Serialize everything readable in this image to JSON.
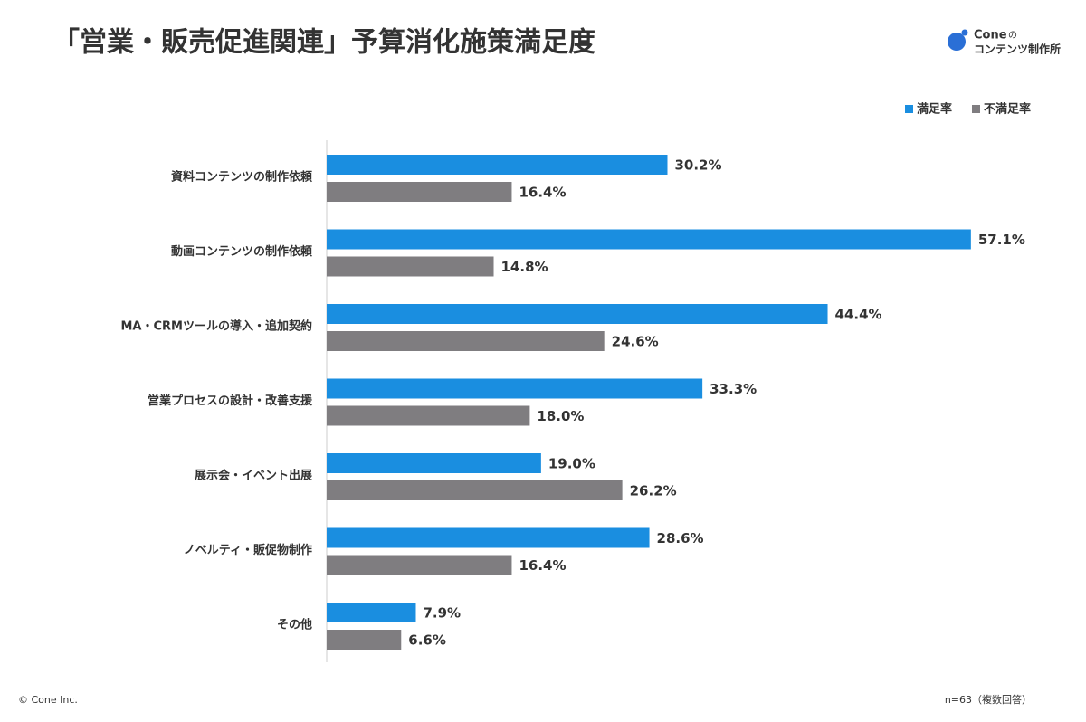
{
  "chart_data": {
    "type": "hbar",
    "title": "「営業・販売促進関連」予算消化施策満足度",
    "categories": [
      "資料コンテンツの制作依頼",
      "動画コンテンツの制作依頼",
      "MA・CRMツールの導入・追加契約",
      "営業プロセスの設計・改善支援",
      "展示会・イベント出展",
      "ノベルティ・販促物制作",
      "その他"
    ],
    "series": [
      {
        "name": "満足率",
        "color": "#1a8ee0",
        "values": [
          30.2,
          57.1,
          44.4,
          33.3,
          19.0,
          28.6,
          7.9
        ],
        "value_labels": [
          "30.2%",
          "57.1%",
          "44.4%",
          "33.3%",
          "19.0%",
          "28.6%",
          "7.9%"
        ]
      },
      {
        "name": "不満足率",
        "color": "#7f7d80",
        "values": [
          16.4,
          14.8,
          24.6,
          18.0,
          26.2,
          16.4,
          6.6
        ],
        "value_labels": [
          "16.4%",
          "14.8%",
          "24.6%",
          "18.0%",
          "26.2%",
          "16.4%",
          "6.6%"
        ]
      }
    ],
    "xlim": [
      0,
      60
    ],
    "legend": "top-right",
    "note": "n=63（複数回答）"
  },
  "logo": {
    "brand": "Cone",
    "particle": "の",
    "name": "コンテンツ制作所"
  },
  "copyright": "© Cone Inc."
}
